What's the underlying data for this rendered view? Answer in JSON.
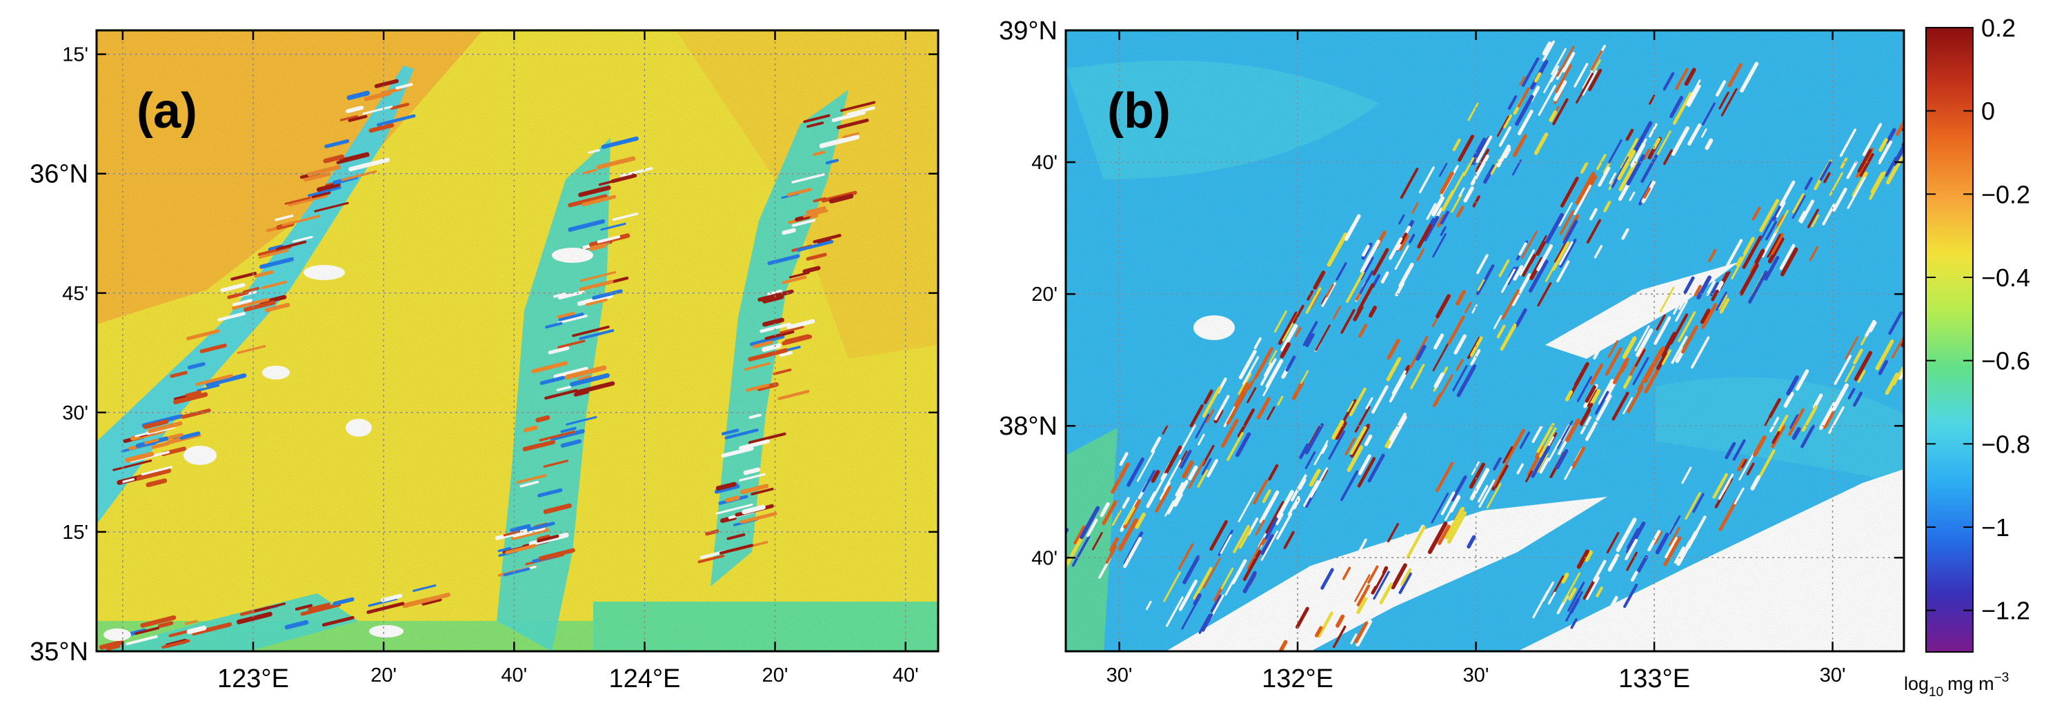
{
  "chart_data": [
    {
      "type": "heatmap",
      "panel_label": "(a)",
      "x_ticks": [
        {
          "lon": 122.6667,
          "label": ""
        },
        {
          "lon": 123.0,
          "label": "123°E"
        },
        {
          "lon": 123.3333,
          "label": "20'"
        },
        {
          "lon": 123.6667,
          "label": "40'"
        },
        {
          "lon": 124.0,
          "label": "124°E"
        },
        {
          "lon": 124.3333,
          "label": "20'"
        },
        {
          "lon": 124.6667,
          "label": "40'"
        }
      ],
      "y_ticks": [
        {
          "lat": 35.0,
          "label": "35°N"
        },
        {
          "lat": 35.25,
          "label": "15'"
        },
        {
          "lat": 35.5,
          "label": "30'"
        },
        {
          "lat": 35.75,
          "label": "45'"
        },
        {
          "lat": 36.0,
          "label": "36°N"
        },
        {
          "lat": 36.25,
          "label": "15'"
        }
      ],
      "xlim": [
        122.6,
        124.75
      ],
      "ylim": [
        35.0,
        36.3
      ],
      "grid": true,
      "background_level": -0.35,
      "features": [
        {
          "kind": "bank",
          "level": -0.75
        },
        {
          "kind": "bank",
          "level": -0.7
        },
        {
          "kind": "bank",
          "level": -0.7
        },
        {
          "kind": "band",
          "level": -0.65
        }
      ]
    },
    {
      "type": "heatmap",
      "panel_label": "(b)",
      "x_ticks": [
        {
          "lon": 131.5,
          "label": "30'"
        },
        {
          "lon": 132.0,
          "label": "132°E"
        },
        {
          "lon": 132.5,
          "label": "30'"
        },
        {
          "lon": 133.0,
          "label": "133°E"
        },
        {
          "lon": 133.5,
          "label": "30'"
        }
      ],
      "y_ticks": [
        {
          "lat": 37.6667,
          "label": "40'"
        },
        {
          "lat": 38.0,
          "label": "38°N"
        },
        {
          "lat": 38.3333,
          "label": "20'"
        },
        {
          "lat": 38.6667,
          "label": "40'"
        },
        {
          "lat": 39.0,
          "label": "39°N"
        }
      ],
      "xlim": [
        131.35,
        133.7
      ],
      "ylim": [
        37.43,
        39.0
      ],
      "grid": true,
      "background_level": -0.85
    }
  ],
  "colorbar": {
    "range": [
      -1.3,
      0.2
    ],
    "ticks": [
      {
        "value": 0.2,
        "label": "0.2"
      },
      {
        "value": 0.0,
        "label": "0"
      },
      {
        "value": -0.2,
        "label": "−0.2"
      },
      {
        "value": -0.4,
        "label": "−0.4"
      },
      {
        "value": -0.6,
        "label": "−0.6"
      },
      {
        "value": -0.8,
        "label": "−0.8"
      },
      {
        "value": -1.0,
        "label": "−1"
      },
      {
        "value": -1.2,
        "label": "−1.2"
      }
    ],
    "label_prefix": "log",
    "label_sub": "10",
    "label_unit": "mg m",
    "label_sup": "−3",
    "colormap": [
      "#7a1a8c",
      "#3a2fb8",
      "#2470e8",
      "#2eaef2",
      "#4fd6e6",
      "#62e08a",
      "#b6ec50",
      "#f2e23a",
      "#f6a43a",
      "#ea6a1e",
      "#c5331a",
      "#8a0f0f"
    ]
  }
}
